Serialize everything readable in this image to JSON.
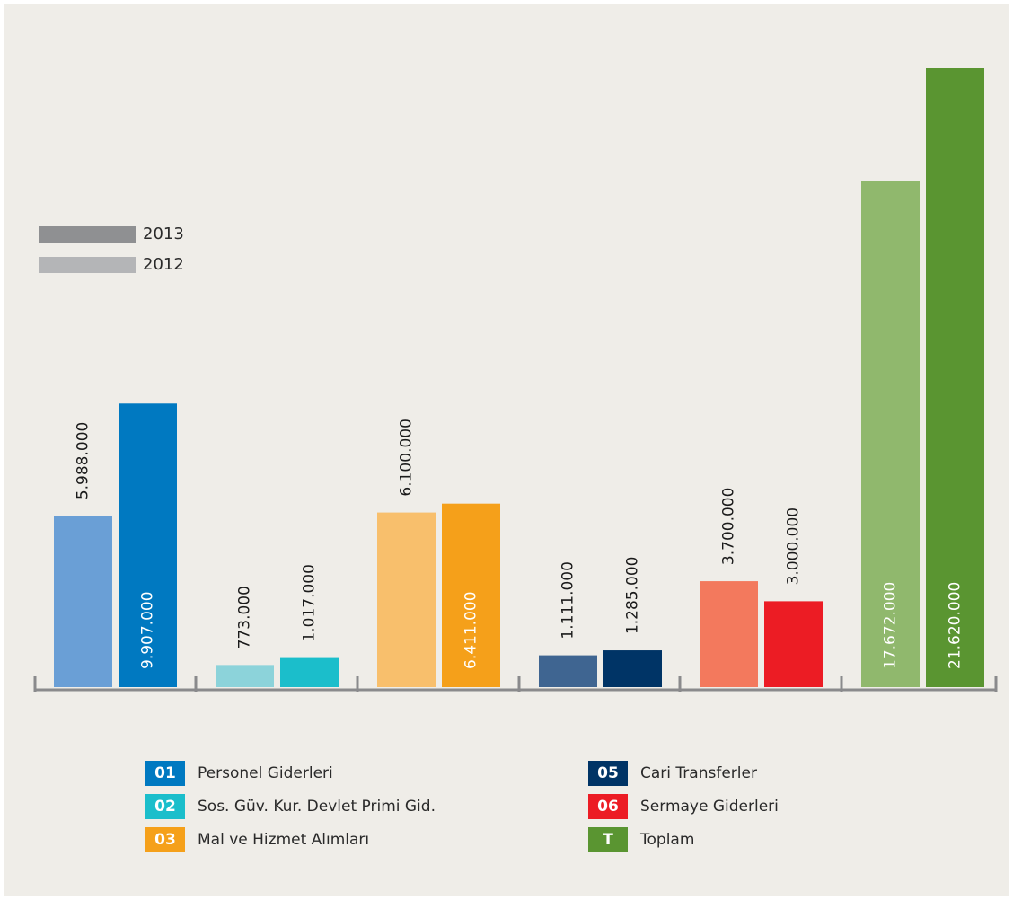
{
  "legend_years": [
    {
      "label": "2013",
      "color": "#8f9092"
    },
    {
      "label": "2012",
      "color": "#b4b5b7"
    }
  ],
  "categories_legend": [
    {
      "code": "01",
      "name": "Personel Giderleri",
      "color": "#0079c1"
    },
    {
      "code": "02",
      "name": "Sos. Güv. Kur. Devlet Primi Gid.",
      "color": "#1bbecb"
    },
    {
      "code": "03",
      "name": "Mal ve Hizmet Alımları",
      "color": "#f5a01a"
    },
    {
      "code": "05",
      "name": "Cari Transferler",
      "color": "#003466"
    },
    {
      "code": "06",
      "name": "Sermaye Giderleri",
      "color": "#ec1c24"
    },
    {
      "code": "T",
      "name": "Toplam",
      "color": "#5a9531"
    }
  ],
  "chart_data": {
    "type": "bar",
    "categories": [
      "01",
      "02",
      "03",
      "05",
      "06",
      "T"
    ],
    "series": [
      {
        "name": "2012",
        "values": [
          5988000,
          773000,
          6100000,
          1111000,
          3700000,
          17672000
        ],
        "labels": [
          "5.988.000",
          "773.000",
          "6.100.000",
          "1.111.000",
          "3.700.000",
          "17.672.000"
        ]
      },
      {
        "name": "2013",
        "values": [
          9907000,
          1017000,
          6411000,
          1285000,
          3000000,
          21620000
        ],
        "labels": [
          "9.907.000",
          "1.017.000",
          "6.411.000",
          "1.285.000",
          "3.000.000",
          "21.620.000"
        ]
      }
    ],
    "colors_2012": [
      "#6a9fd6",
      "#8cd3da",
      "#f8bf6c",
      "#3f6591",
      "#f3795d",
      "#90b86d"
    ],
    "colors_2013": [
      "#0079c1",
      "#1bbecb",
      "#f5a01a",
      "#003466",
      "#ec1c24",
      "#5a9531"
    ],
    "legend_position": "left",
    "grid": false
  }
}
